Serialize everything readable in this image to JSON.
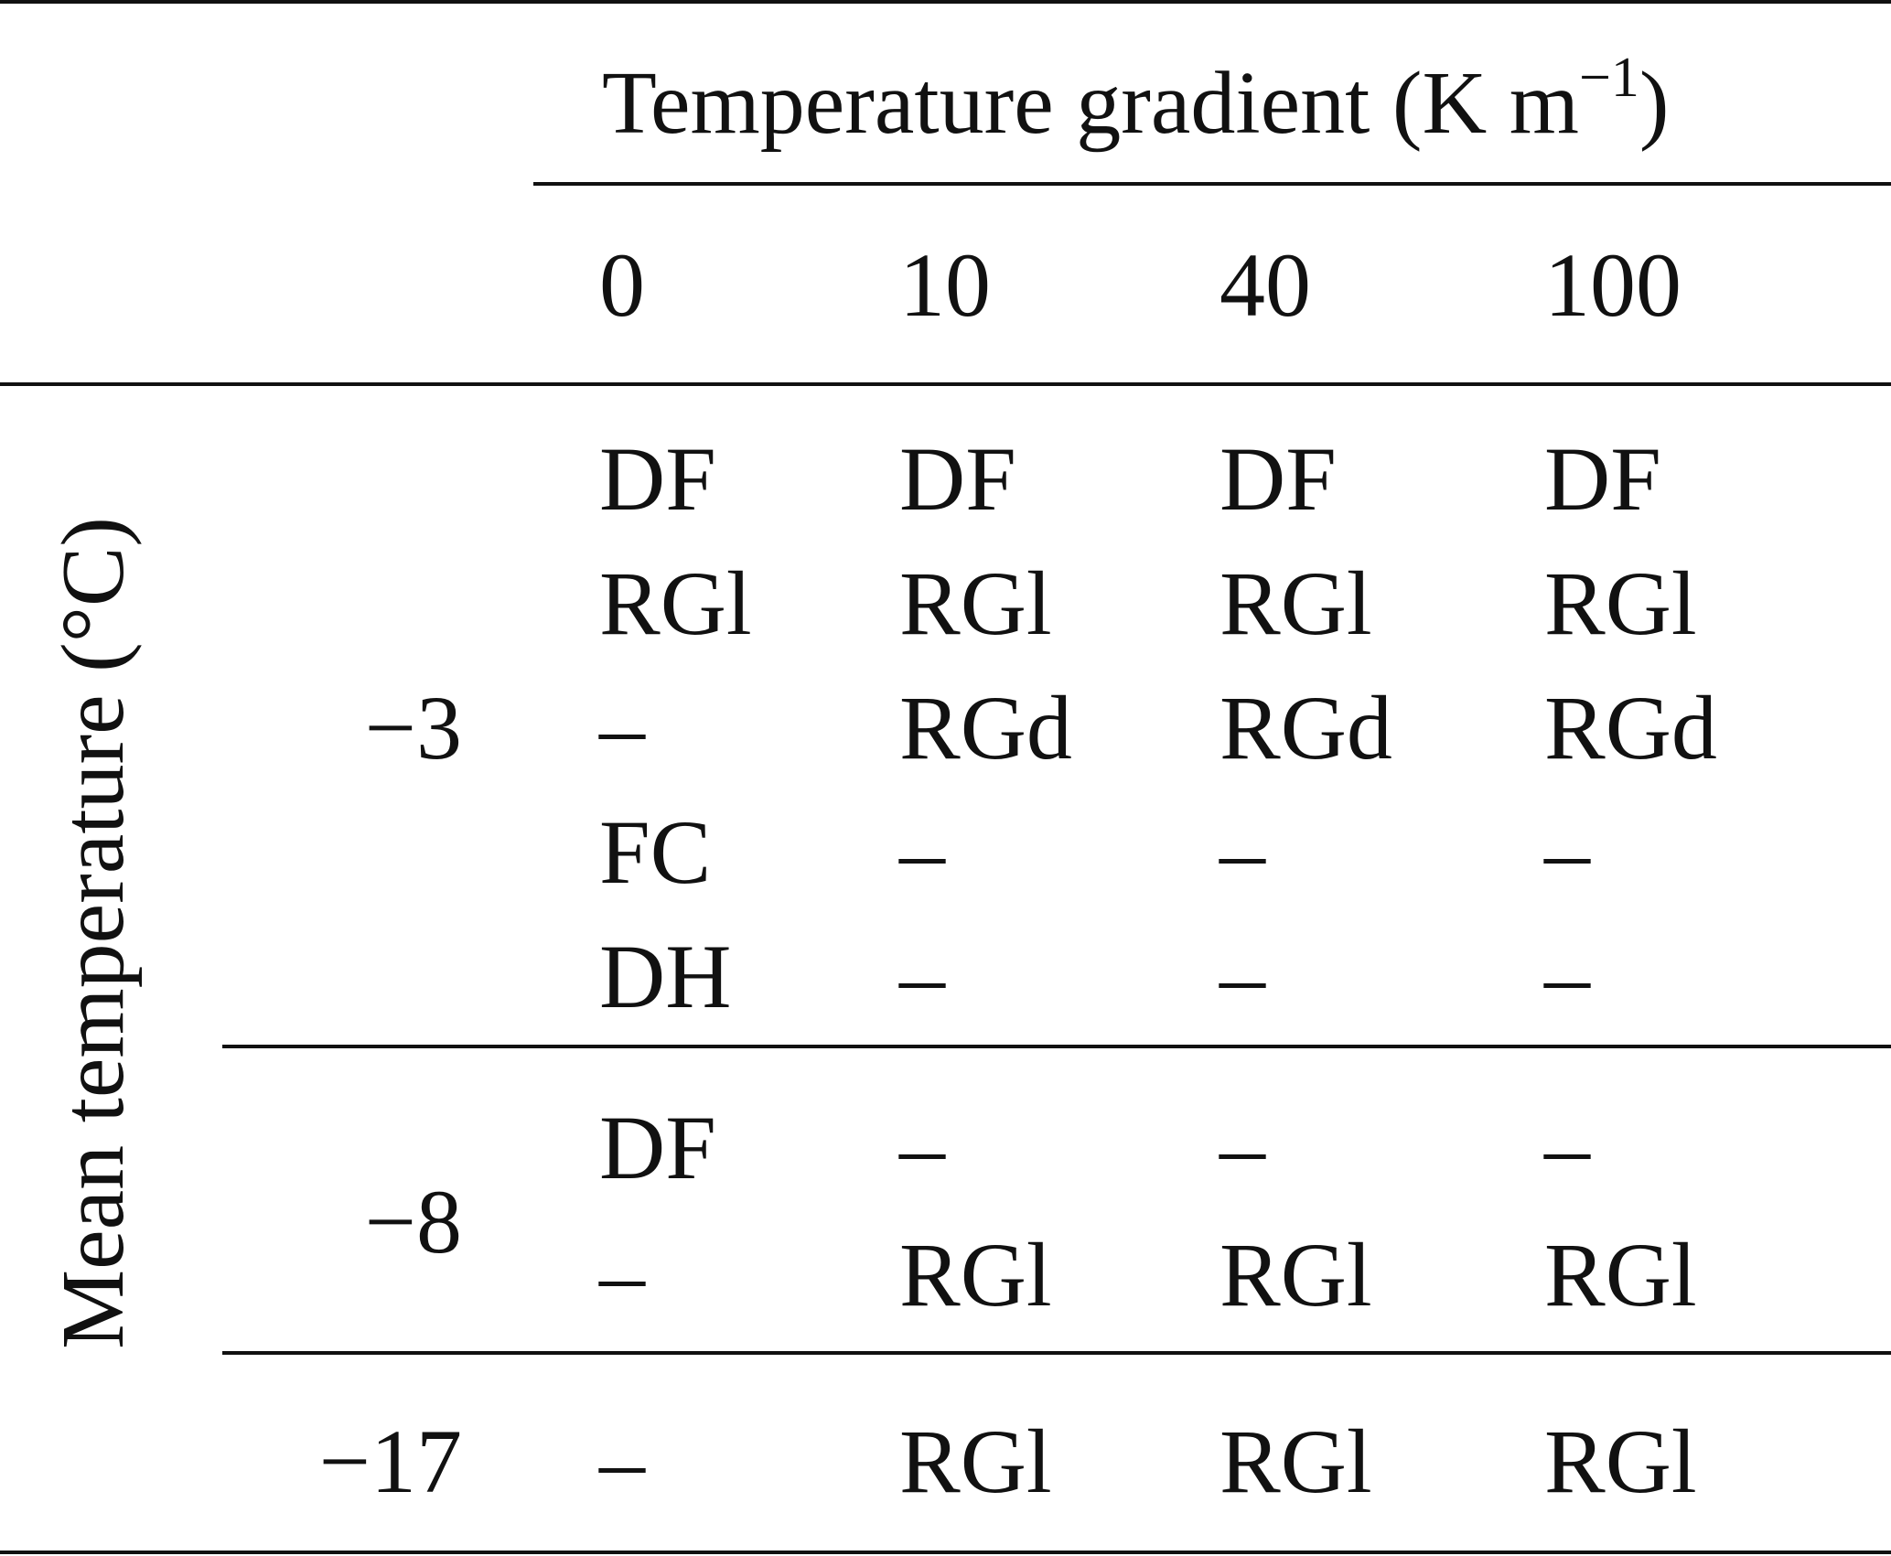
{
  "table": {
    "column_group_header": "Temperature gradient (K m",
    "column_group_unit_exponent": "−1",
    "column_group_header_close": ")",
    "row_axis_label": "Mean temperature (°C)",
    "gradients": [
      "0",
      "10",
      "40",
      "100"
    ],
    "groups": [
      {
        "mean_temperature": "−3",
        "rows": [
          [
            "DF",
            "DF",
            "DF",
            "DF"
          ],
          [
            "RGl",
            "RGl",
            "RGl",
            "RGl"
          ],
          [
            "–",
            "RGd",
            "RGd",
            "RGd"
          ],
          [
            "FC",
            "–",
            "–",
            "–"
          ],
          [
            "DH",
            "–",
            "–",
            "–"
          ]
        ]
      },
      {
        "mean_temperature": "−8",
        "rows": [
          [
            "DF",
            "–",
            "–",
            "–"
          ],
          [
            "–",
            "RGl",
            "RGl",
            "RGl"
          ]
        ]
      },
      {
        "mean_temperature": "−17",
        "rows": [
          [
            "–",
            "RGl",
            "RGl",
            "RGl"
          ]
        ]
      }
    ]
  }
}
